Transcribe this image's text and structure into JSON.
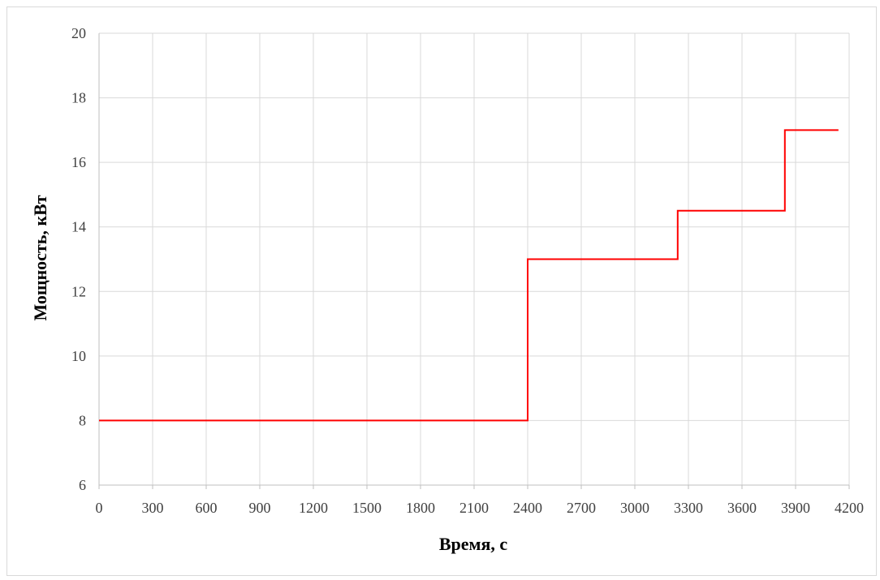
{
  "chart_data": {
    "type": "line",
    "title": "",
    "xlabel": "Время, с",
    "ylabel": "Мощность, кВт",
    "xlim": [
      0,
      4200
    ],
    "ylim": [
      6,
      20
    ],
    "x_ticks": [
      "0",
      "300",
      "600",
      "900",
      "1200",
      "1500",
      "1800",
      "2100",
      "2400",
      "2700",
      "3000",
      "3300",
      "3600",
      "3900",
      "4200"
    ],
    "y_ticks": [
      "6",
      "8",
      "10",
      "12",
      "14",
      "16",
      "18",
      "20"
    ],
    "grid": true,
    "legend": "none",
    "step": true,
    "series": [
      {
        "color": "#ff0000",
        "x": [
          0,
          2400,
          2400,
          3240,
          3240,
          3840,
          3840,
          4140
        ],
        "y": [
          8,
          8,
          13,
          13,
          14.5,
          14.5,
          17,
          17
        ]
      }
    ]
  },
  "colors": {
    "grid": "#d9d9d9",
    "axis": "#bfbfbf",
    "line": "#ff0000"
  }
}
